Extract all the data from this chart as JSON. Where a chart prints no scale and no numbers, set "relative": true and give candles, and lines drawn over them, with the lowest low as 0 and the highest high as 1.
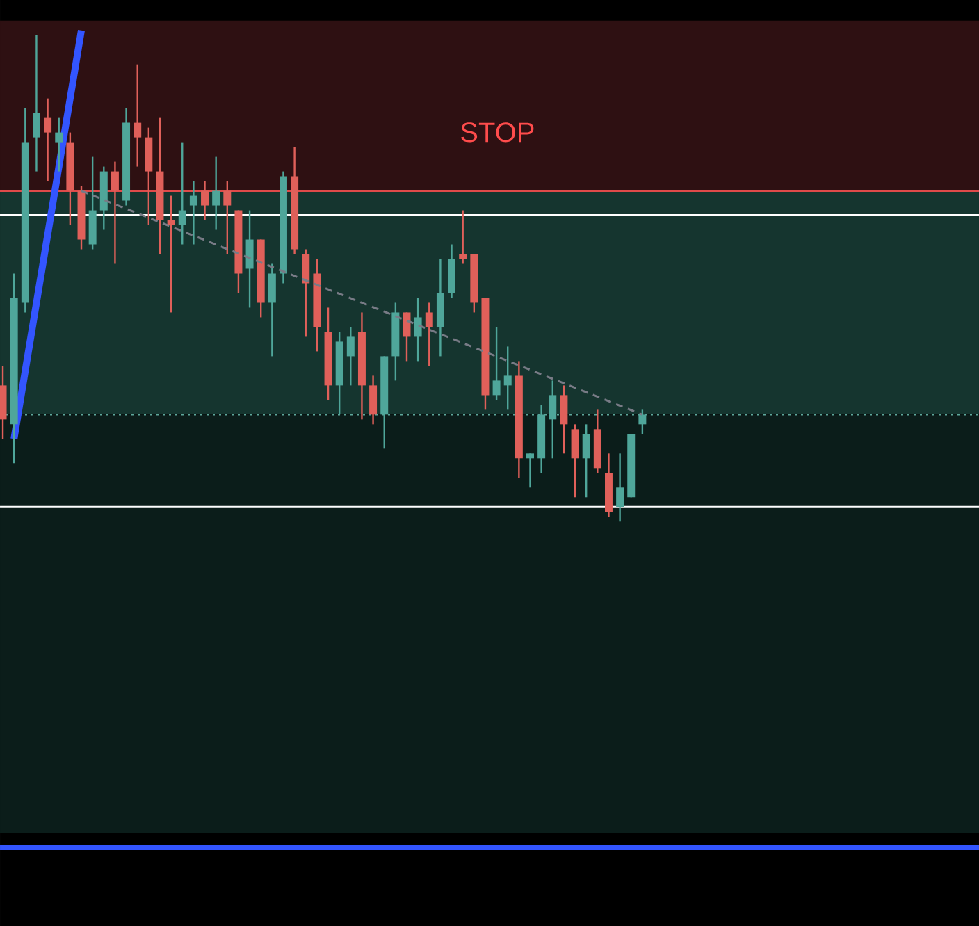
{
  "chart_data": {
    "type": "candlestick",
    "relative": true,
    "categories": [
      null,
      null,
      null,
      null,
      null,
      null,
      null,
      null,
      null,
      null,
      null,
      null,
      null,
      null,
      null,
      null,
      null,
      null,
      null,
      null,
      null,
      null,
      null,
      null,
      null,
      null,
      null,
      null,
      null,
      null,
      null,
      null,
      null,
      null,
      null,
      null,
      null,
      null,
      null,
      null,
      null,
      null,
      null,
      null,
      null,
      null,
      null,
      null,
      null,
      null,
      null,
      null,
      null,
      null,
      null,
      null,
      null,
      null
    ],
    "ohlc": [
      [
        0.28,
        0.32,
        0.17,
        0.21
      ],
      [
        0.2,
        0.51,
        0.12,
        0.46
      ],
      [
        0.45,
        0.85,
        0.43,
        0.78
      ],
      [
        0.79,
        1.0,
        0.72,
        0.84
      ],
      [
        0.83,
        0.87,
        0.7,
        0.8
      ],
      [
        0.78,
        0.83,
        0.72,
        0.8
      ],
      [
        0.78,
        0.8,
        0.61,
        0.68
      ],
      [
        0.68,
        0.69,
        0.56,
        0.58
      ],
      [
        0.57,
        0.75,
        0.56,
        0.64
      ],
      [
        0.64,
        0.73,
        0.6,
        0.72
      ],
      [
        0.72,
        0.74,
        0.53,
        0.68
      ],
      [
        0.66,
        0.85,
        0.65,
        0.82
      ],
      [
        0.82,
        0.94,
        0.73,
        0.79
      ],
      [
        0.79,
        0.81,
        0.61,
        0.72
      ],
      [
        0.72,
        0.83,
        0.55,
        0.62
      ],
      [
        0.62,
        0.67,
        0.43,
        0.61
      ],
      [
        0.61,
        0.78,
        0.57,
        0.64
      ],
      [
        0.65,
        0.7,
        0.57,
        0.67
      ],
      [
        0.68,
        0.7,
        0.62,
        0.65
      ],
      [
        0.65,
        0.75,
        0.6,
        0.68
      ],
      [
        0.68,
        0.7,
        0.55,
        0.65
      ],
      [
        0.64,
        0.64,
        0.47,
        0.51
      ],
      [
        0.52,
        0.64,
        0.44,
        0.58
      ],
      [
        0.58,
        0.58,
        0.42,
        0.45
      ],
      [
        0.45,
        0.53,
        0.34,
        0.51
      ],
      [
        0.51,
        0.72,
        0.49,
        0.71
      ],
      [
        0.71,
        0.77,
        0.55,
        0.56
      ],
      [
        0.55,
        0.56,
        0.38,
        0.49
      ],
      [
        0.51,
        0.54,
        0.35,
        0.4
      ],
      [
        0.39,
        0.44,
        0.25,
        0.28
      ],
      [
        0.28,
        0.39,
        0.22,
        0.37
      ],
      [
        0.34,
        0.4,
        0.28,
        0.38
      ],
      [
        0.39,
        0.43,
        0.21,
        0.28
      ],
      [
        0.28,
        0.3,
        0.2,
        0.22
      ],
      [
        0.22,
        0.34,
        0.15,
        0.34
      ],
      [
        0.34,
        0.45,
        0.29,
        0.43
      ],
      [
        0.43,
        0.43,
        0.33,
        0.38
      ],
      [
        0.38,
        0.46,
        0.33,
        0.42
      ],
      [
        0.43,
        0.45,
        0.32,
        0.4
      ],
      [
        0.4,
        0.54,
        0.34,
        0.47
      ],
      [
        0.47,
        0.57,
        0.46,
        0.54
      ],
      [
        0.55,
        0.64,
        0.53,
        0.54
      ],
      [
        0.55,
        0.55,
        0.43,
        0.45
      ],
      [
        0.46,
        0.46,
        0.23,
        0.26
      ],
      [
        0.26,
        0.4,
        0.25,
        0.29
      ],
      [
        0.28,
        0.36,
        0.23,
        0.3
      ],
      [
        0.3,
        0.33,
        0.09,
        0.13
      ],
      [
        0.13,
        0.14,
        0.07,
        0.14
      ],
      [
        0.13,
        0.24,
        0.1,
        0.22
      ],
      [
        0.21,
        0.29,
        0.13,
        0.26
      ],
      [
        0.26,
        0.28,
        0.14,
        0.2
      ],
      [
        0.19,
        0.2,
        0.05,
        0.13
      ],
      [
        0.13,
        0.2,
        0.05,
        0.18
      ],
      [
        0.19,
        0.23,
        0.1,
        0.11
      ],
      [
        0.1,
        0.14,
        0.01,
        0.02
      ],
      [
        0.03,
        0.14,
        0.0,
        0.07
      ],
      [
        0.05,
        0.18,
        0.05,
        0.18
      ],
      [
        0.2,
        0.23,
        0.18,
        0.22
      ]
    ],
    "series": [
      {
        "type": "line",
        "color": "#3355ff",
        "values": [
          null,
          0.17,
          null,
          null,
          null,
          null,
          null,
          1.01,
          null,
          null,
          null,
          null,
          null,
          null,
          null,
          null,
          null,
          null,
          null,
          null,
          null,
          null,
          null,
          null,
          null,
          null,
          null,
          null,
          null,
          null,
          null,
          null,
          null,
          null,
          null,
          null,
          null,
          null,
          null,
          null,
          null,
          null,
          null,
          null,
          null,
          null,
          null,
          null,
          null,
          null,
          null,
          null,
          null,
          null,
          null,
          null,
          null,
          null
        ]
      },
      {
        "type": "line",
        "color": "#787b86",
        "line_style": "dashed",
        "values": [
          null,
          null,
          null,
          null,
          null,
          null,
          null,
          0.68,
          null,
          null,
          null,
          null,
          null,
          null,
          null,
          null,
          null,
          null,
          null,
          null,
          null,
          null,
          null,
          null,
          null,
          null,
          null,
          null,
          null,
          null,
          null,
          null,
          null,
          null,
          null,
          null,
          null,
          null,
          null,
          null,
          null,
          null,
          null,
          null,
          null,
          null,
          null,
          null,
          null,
          null,
          null,
          null,
          null,
          null,
          null,
          null,
          null,
          0.22
        ]
      }
    ],
    "bands": [
      {
        "axis": "y",
        "from": 0.68,
        "to": 1.03,
        "label": "STOP",
        "color": "#2e1012"
      },
      {
        "axis": "y",
        "from": 0.22,
        "to": 0.68,
        "color": "#15352f"
      },
      {
        "axis": "y",
        "from": -0.64,
        "to": 0.22,
        "color": "#0b1d1a"
      }
    ],
    "ref_lines": [
      {
        "axis": "y",
        "value": 0.68,
        "color": "#e04a4a"
      },
      {
        "axis": "y",
        "value": 0.63,
        "color": "#ffffff"
      },
      {
        "axis": "y",
        "value": 0.03,
        "color": "#ffffff"
      },
      {
        "axis": "y",
        "value": 0.22,
        "color": "#5fa89c",
        "line_style": "dotted"
      },
      {
        "axis": "y",
        "value": -0.67,
        "color": "#3355ff"
      }
    ]
  }
}
